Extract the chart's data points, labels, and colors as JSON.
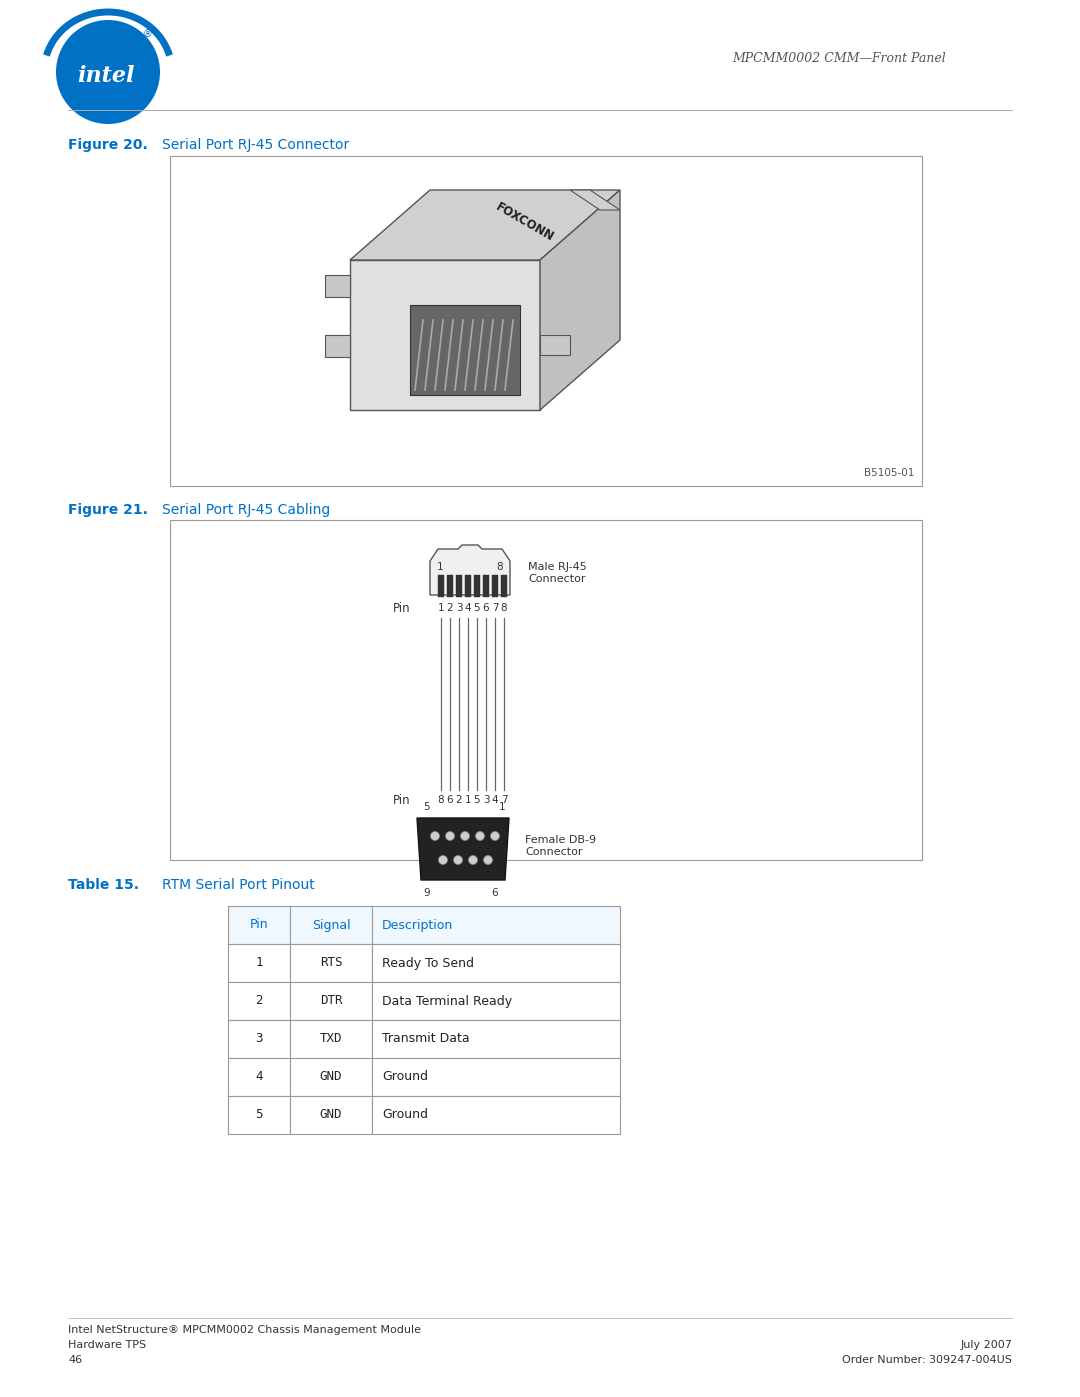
{
  "page_width": 10.8,
  "page_height": 13.97,
  "bg_color": "#ffffff",
  "header_text": "MPCMM0002 CMM—Front Panel",
  "intel_logo_color": "#0071c5",
  "figure20_label": "Figure 20.",
  "figure20_title": "Serial Port RJ-45 Connector",
  "figure21_label": "Figure 21.",
  "figure21_title": "Serial Port RJ-45 Cabling",
  "table15_label": "Table 15.",
  "table15_title": "RTM Serial Port Pinout",
  "label_color": "#0071c5",
  "table_header": [
    "Pin",
    "Signal",
    "Description"
  ],
  "table_rows": [
    [
      "1",
      "RTS",
      "Ready To Send"
    ],
    [
      "2",
      "DTR",
      "Data Terminal Ready"
    ],
    [
      "3",
      "TXD",
      "Transmit Data"
    ],
    [
      "4",
      "GND",
      "Ground"
    ],
    [
      "5",
      "GND",
      "Ground"
    ]
  ],
  "footer_left_line1": "Intel NetStructure® MPCMM0002 Chassis Management Module",
  "footer_left_line2": "Hardware TPS",
  "footer_left_line3": "46",
  "footer_right_line1": "July 2007",
  "footer_right_line2": "Order Number: 309247-004US",
  "b5105_label": "B5105-01",
  "rj45_pin_labels_top": [
    "1",
    "2",
    "3",
    "4",
    "5",
    "6",
    "7",
    "8"
  ],
  "rj45_pin_labels_bottom": [
    "8",
    "6",
    "2",
    "1",
    "5",
    "3",
    "4",
    "7"
  ],
  "male_rj45_text": "Male RJ-45\nConnector",
  "female_db9_text": "Female DB-9\nConnector"
}
